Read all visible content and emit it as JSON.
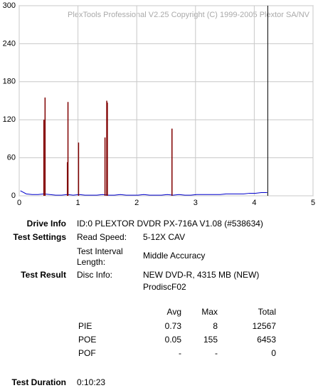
{
  "chart_data": {
    "type": "combo",
    "watermark": "PlexTools Professional V2.25 Copyright (C) 1999-2005 Plextor SA/NV",
    "xlim": [
      0,
      5
    ],
    "xticks": [
      0,
      1,
      2,
      3,
      4,
      5
    ],
    "ylim": [
      0,
      300
    ],
    "yticks": [
      0,
      60,
      120,
      180,
      240,
      300
    ],
    "grid": true,
    "end_marker_x": 4.23,
    "end_marker_color": "#000000",
    "series": [
      {
        "style": "line",
        "color": "#0000cc",
        "x": [
          0.02,
          0.12,
          0.22,
          0.32,
          0.42,
          0.52,
          0.62,
          0.72,
          0.82,
          0.92,
          1.02,
          1.12,
          1.22,
          1.32,
          1.42,
          1.52,
          1.62,
          1.72,
          1.82,
          1.92,
          2.02,
          2.12,
          2.22,
          2.32,
          2.42,
          2.52,
          2.62,
          2.72,
          2.82,
          2.92,
          3.02,
          3.12,
          3.22,
          3.32,
          3.42,
          3.52,
          3.62,
          3.72,
          3.82,
          3.92,
          4.02,
          4.12,
          4.22
        ],
        "values": [
          8,
          3,
          2,
          2,
          3,
          2,
          1,
          1,
          2,
          1,
          2,
          1,
          1,
          1,
          2,
          1,
          1,
          2,
          1,
          1,
          1,
          2,
          1,
          1,
          1,
          2,
          1,
          2,
          1,
          1,
          2,
          2,
          2,
          2,
          2,
          3,
          3,
          3,
          3,
          4,
          4,
          5,
          5
        ]
      },
      {
        "style": "spike",
        "color": "#800000",
        "x": [
          0.42,
          0.44,
          0.82,
          0.83,
          1.01,
          1.46,
          1.49,
          1.5,
          2.6
        ],
        "values": [
          120,
          155,
          53,
          148,
          84,
          92,
          150,
          147,
          106
        ]
      }
    ]
  },
  "report": {
    "drive_info_label": "Drive Info",
    "drive_info": "ID:0 PLEXTOR DVDR PX-716A V1.08 (#538634)",
    "test_settings_label": "Test Settings",
    "read_speed_label": "Read Speed:",
    "read_speed": "5-12X CAV",
    "interval_label_1": "Test Interval",
    "interval_label_2": "Length:",
    "interval": "Middle Accuracy",
    "test_result_label": "Test Result",
    "disc_info_label": "Disc Info:",
    "disc_info_1": "NEW DVD-R, 4315 MB (NEW)",
    "disc_info_2": "ProdiscF02",
    "table": {
      "header": [
        "Avg",
        "Max",
        "Total"
      ],
      "rows": [
        [
          "PIE",
          "0.73",
          "8",
          "12567"
        ],
        [
          "POE",
          "0.05",
          "155",
          "6453"
        ],
        [
          "POF",
          "-",
          "-",
          "0"
        ]
      ]
    },
    "duration_label": "Test Duration",
    "duration": "0:10:23"
  }
}
